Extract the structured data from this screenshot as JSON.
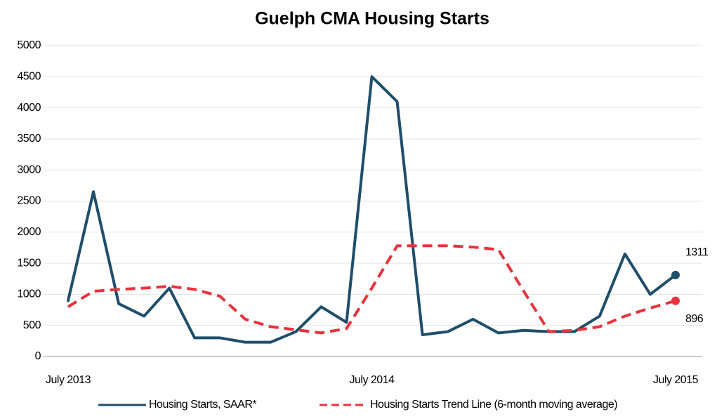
{
  "chart_data": {
    "type": "line",
    "title": "Guelph CMA  Housing Starts",
    "categories": [
      "July 2013",
      null,
      null,
      null,
      null,
      null,
      null,
      null,
      null,
      null,
      null,
      null,
      "July 2014",
      null,
      null,
      null,
      null,
      null,
      null,
      null,
      null,
      null,
      null,
      null,
      "July 2015"
    ],
    "series": [
      {
        "name": "Housing Starts, SAAR*",
        "color": "#1f4e6b",
        "dash": false,
        "values": [
          900,
          2650,
          850,
          650,
          1100,
          300,
          300,
          230,
          230,
          400,
          800,
          550,
          4500,
          4100,
          350,
          400,
          600,
          380,
          420,
          400,
          400,
          650,
          1650,
          1000,
          1311
        ]
      },
      {
        "name": "Housing Starts Trend Line (6-month moving average)",
        "color": "#e8323c",
        "dash": true,
        "values": [
          800,
          1050,
          1080,
          1100,
          1130,
          1080,
          970,
          600,
          480,
          430,
          380,
          450,
          1100,
          1780,
          1780,
          1780,
          1760,
          1720,
          1050,
          400,
          420,
          480,
          650,
          780,
          896
        ]
      }
    ],
    "ylim": [
      0,
      5000
    ],
    "yticks": [
      0,
      500,
      1000,
      1500,
      2000,
      2500,
      3000,
      3500,
      4000,
      4500,
      5000
    ],
    "grid": true,
    "legend": "bottom"
  }
}
